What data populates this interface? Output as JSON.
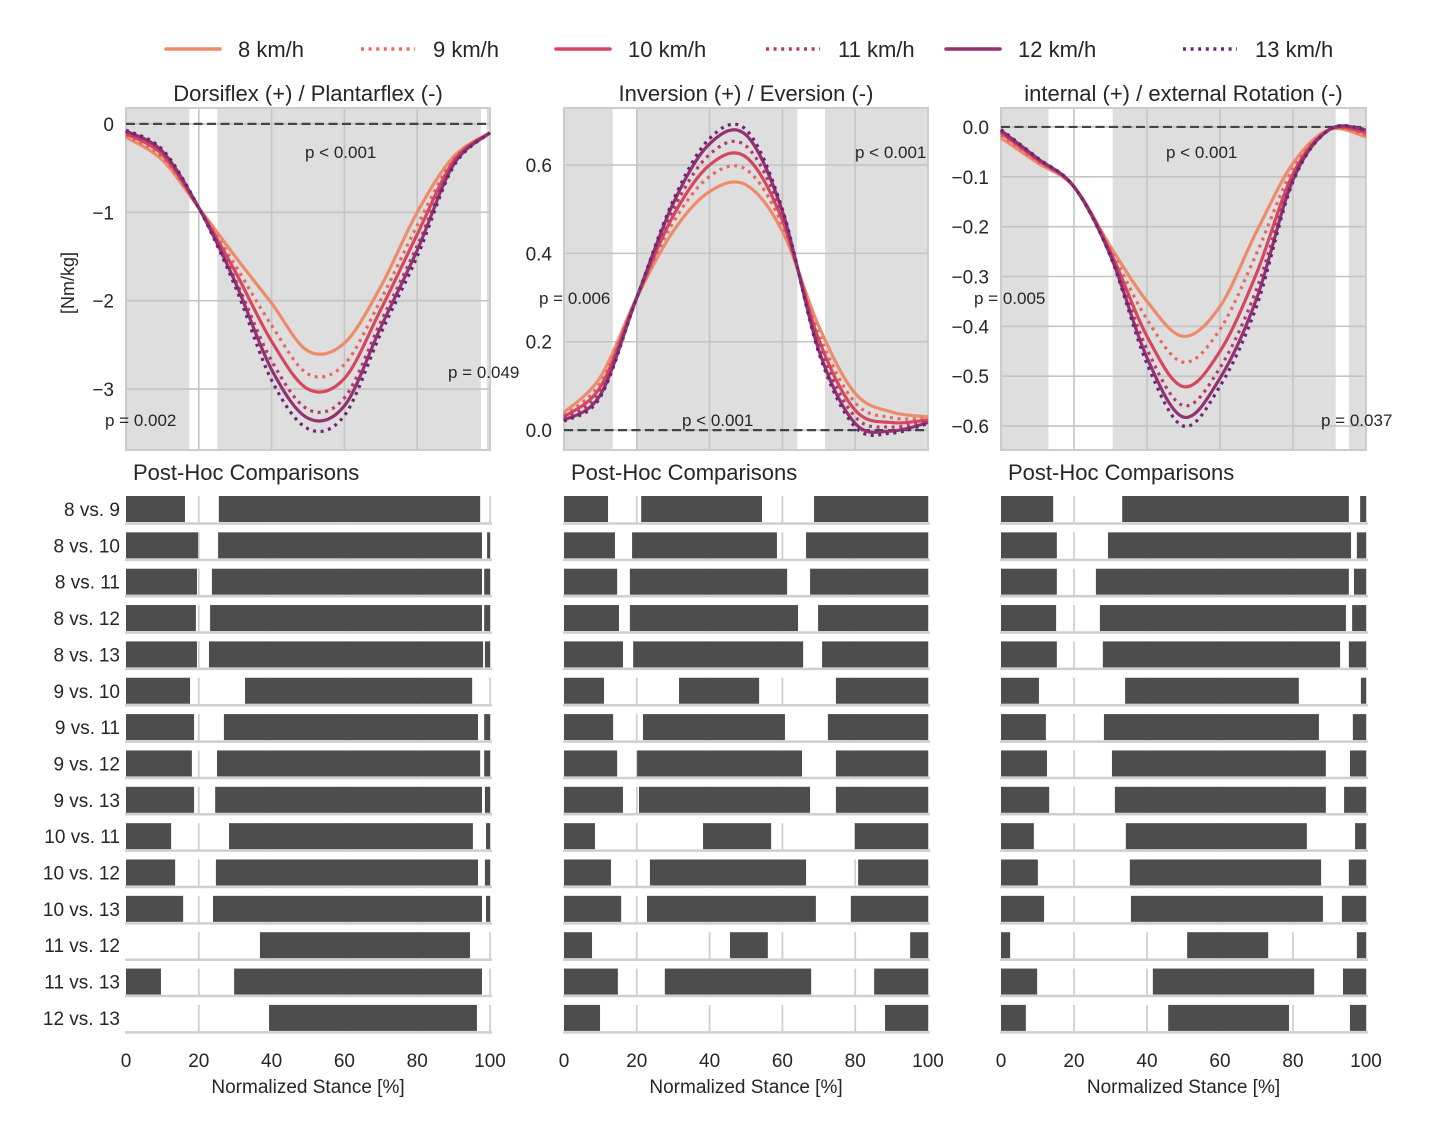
{
  "legend": {
    "items": [
      {
        "label": "8 km/h",
        "color": "#ee8b6a",
        "style": "solid"
      },
      {
        "label": "9 km/h",
        "color": "#e8685f",
        "style": "dotted"
      },
      {
        "label": "10 km/h",
        "color": "#d6475f",
        "style": "solid"
      },
      {
        "label": "11 km/h",
        "color": "#b63a6a",
        "style": "dotted"
      },
      {
        "label": "12 km/h",
        "color": "#93326f",
        "style": "solid"
      },
      {
        "label": "13 km/h",
        "color": "#6e2673",
        "style": "dotted"
      }
    ]
  },
  "chart_data": [
    {
      "type": "line",
      "title": "Dorsiflex (+) / Plantarflex (-)",
      "ylabel": "[Nm/kg]",
      "xlim": [
        0,
        100
      ],
      "ylim": [
        -3.69,
        0.18
      ],
      "xticks": [
        0,
        20,
        40,
        60,
        80,
        100
      ],
      "yticks": [
        0,
        -1,
        -2,
        -3
      ],
      "ytick_labels": [
        "0",
        "−1",
        "−2",
        "−3"
      ],
      "grid": true,
      "reference_line": 0,
      "significant_regions": [
        [
          0,
          17.4
        ],
        [
          25.1,
          97.5
        ],
        [
          99.1,
          100
        ]
      ],
      "annotations": [
        "p < 0.001",
        "p = 0.002",
        "p = 0.049"
      ],
      "x": [
        0,
        10,
        20,
        30,
        40,
        50,
        60,
        70,
        80,
        90,
        100
      ],
      "series": [
        {
          "name": "8 km/h",
          "values": [
            -0.15,
            -0.41,
            -0.95,
            -1.5,
            -2.03,
            -2.57,
            -2.48,
            -1.84,
            -1.0,
            -0.37,
            -0.1
          ]
        },
        {
          "name": "9 km/h",
          "values": [
            -0.13,
            -0.38,
            -0.95,
            -1.6,
            -2.28,
            -2.83,
            -2.72,
            -1.99,
            -1.15,
            -0.4,
            -0.1
          ]
        },
        {
          "name": "10 km/h",
          "values": [
            -0.11,
            -0.35,
            -0.95,
            -1.67,
            -2.46,
            -3.0,
            -2.88,
            -2.1,
            -1.25,
            -0.42,
            -0.1
          ]
        },
        {
          "name": "11 km/h",
          "values": [
            -0.09,
            -0.32,
            -0.95,
            -1.76,
            -2.68,
            -3.23,
            -3.1,
            -2.24,
            -1.38,
            -0.45,
            -0.1
          ]
        },
        {
          "name": "12 km/h",
          "values": [
            -0.08,
            -0.31,
            -0.95,
            -1.79,
            -2.78,
            -3.33,
            -3.19,
            -2.3,
            -1.43,
            -0.46,
            -0.1
          ]
        },
        {
          "name": "13 km/h",
          "values": [
            -0.07,
            -0.29,
            -0.95,
            -1.84,
            -2.9,
            -3.45,
            -3.3,
            -2.37,
            -1.5,
            -0.48,
            -0.1
          ]
        }
      ]
    },
    {
      "type": "line",
      "title": "Inversion (+) / Eversion (-)",
      "xlim": [
        0,
        100
      ],
      "ylim": [
        -0.045,
        0.729
      ],
      "xticks": [
        0,
        20,
        40,
        60,
        80,
        100
      ],
      "yticks": [
        0,
        0.2,
        0.4,
        0.6
      ],
      "ytick_labels": [
        "0.0",
        "0.2",
        "0.4",
        "0.6"
      ],
      "grid": true,
      "reference_line": 0,
      "significant_regions": [
        [
          0,
          13.4
        ],
        [
          20.2,
          64.1
        ],
        [
          71.7,
          100
        ]
      ],
      "annotations": [
        "p = 0.006",
        "p < 0.001",
        "p < 0.001"
      ],
      "x": [
        0,
        10,
        20,
        30,
        40,
        50,
        60,
        70,
        80,
        90,
        100
      ],
      "series": [
        {
          "name": "8 km/h",
          "values": [
            0.04,
            0.12,
            0.3,
            0.45,
            0.54,
            0.555,
            0.45,
            0.235,
            0.083,
            0.041,
            0.03
          ]
        },
        {
          "name": "9 km/h",
          "values": [
            0.034,
            0.107,
            0.3,
            0.47,
            0.574,
            0.59,
            0.464,
            0.218,
            0.062,
            0.028,
            0.026
          ]
        },
        {
          "name": "10 km/h",
          "values": [
            0.03,
            0.098,
            0.3,
            0.485,
            0.6,
            0.618,
            0.475,
            0.205,
            0.045,
            0.017,
            0.023
          ]
        },
        {
          "name": "11 km/h",
          "values": [
            0.026,
            0.089,
            0.3,
            0.499,
            0.624,
            0.643,
            0.485,
            0.193,
            0.03,
            0.007,
            0.02
          ]
        },
        {
          "name": "12 km/h",
          "values": [
            0.022,
            0.08,
            0.3,
            0.513,
            0.648,
            0.668,
            0.495,
            0.181,
            0.015,
            -0.002,
            0.017
          ]
        },
        {
          "name": "13 km/h",
          "values": [
            0.02,
            0.075,
            0.3,
            0.52,
            0.66,
            0.68,
            0.5,
            0.175,
            0.007,
            -0.007,
            0.015
          ]
        }
      ]
    },
    {
      "type": "line",
      "title": "internal (+) / external Rotation (-)",
      "xlim": [
        0,
        100
      ],
      "ylim": [
        -0.648,
        0.038
      ],
      "xticks": [
        0,
        20,
        40,
        60,
        80,
        100
      ],
      "yticks": [
        0,
        -0.1,
        -0.2,
        -0.3,
        -0.4,
        -0.5,
        -0.6
      ],
      "ytick_labels": [
        "0.0",
        "−0.1",
        "−0.2",
        "−0.3",
        "−0.4",
        "−0.5",
        "−0.6"
      ],
      "grid": true,
      "reference_line": 0,
      "significant_regions": [
        [
          0,
          13.0
        ],
        [
          30.6,
          91.7
        ],
        [
          95.3,
          100
        ]
      ],
      "annotations": [
        "p < 0.001",
        "p = 0.005",
        "p = 0.037"
      ],
      "x": [
        0,
        10,
        20,
        30,
        40,
        50,
        60,
        70,
        80,
        90,
        100
      ],
      "series": [
        {
          "name": "8 km/h",
          "values": [
            -0.022,
            -0.072,
            -0.12,
            -0.24,
            -0.35,
            -0.42,
            -0.36,
            -0.21,
            -0.073,
            -0.005,
            -0.02
          ]
        },
        {
          "name": "9 km/h",
          "values": [
            -0.017,
            -0.069,
            -0.12,
            -0.246,
            -0.386,
            -0.472,
            -0.406,
            -0.254,
            -0.084,
            -0.005,
            -0.016
          ]
        },
        {
          "name": "10 km/h",
          "values": [
            -0.012,
            -0.066,
            -0.12,
            -0.251,
            -0.42,
            -0.521,
            -0.45,
            -0.294,
            -0.094,
            -0.005,
            -0.012
          ]
        },
        {
          "name": "11 km/h",
          "values": [
            -0.009,
            -0.064,
            -0.12,
            -0.255,
            -0.446,
            -0.559,
            -0.483,
            -0.326,
            -0.101,
            -0.005,
            -0.008
          ]
        },
        {
          "name": "12 km/h",
          "values": [
            -0.007,
            -0.063,
            -0.12,
            -0.258,
            -0.463,
            -0.582,
            -0.504,
            -0.345,
            -0.106,
            -0.005,
            -0.006
          ]
        },
        {
          "name": "13 km/h",
          "values": [
            -0.005,
            -0.062,
            -0.12,
            -0.26,
            -0.475,
            -0.6,
            -0.52,
            -0.36,
            -0.11,
            -0.005,
            -0.005
          ]
        }
      ]
    },
    {
      "type": "broken_bar",
      "title": "Post-Hoc Comparisons",
      "categories": [
        "8 vs. 9",
        "8 vs. 10",
        "8 vs. 11",
        "8 vs. 12",
        "8 vs. 13",
        "9 vs. 10",
        "9 vs. 11",
        "9 vs. 12",
        "9 vs. 13",
        "10 vs. 11",
        "10 vs. 12",
        "10 vs. 13",
        "11 vs. 12",
        "11 vs. 13",
        "12 vs. 13"
      ],
      "xlim": [
        0,
        100
      ],
      "xticks": [
        0,
        20,
        40,
        60,
        80,
        100
      ],
      "xtick_labels": [
        "0",
        "20",
        "40",
        "60",
        "80",
        "100"
      ],
      "xlabel": "Normalized Stance [%]",
      "intervals": [
        [
          [
            0,
            16.2
          ],
          [
            25.5,
            97.3
          ]
        ],
        [
          [
            0,
            19.8
          ],
          [
            25.3,
            97.8
          ],
          [
            99.2,
            100
          ]
        ],
        [
          [
            0,
            19.5
          ],
          [
            23.6,
            97.8
          ],
          [
            98.4,
            100
          ]
        ],
        [
          [
            0,
            19.2
          ],
          [
            23.1,
            97.8
          ],
          [
            98.4,
            100
          ]
        ],
        [
          [
            0,
            19.5
          ],
          [
            22.8,
            98.1
          ],
          [
            98.6,
            100
          ]
        ],
        [
          [
            0,
            17.6
          ],
          [
            32.7,
            95.1
          ]
        ],
        [
          [
            0,
            18.7
          ],
          [
            26.9,
            96.7
          ],
          [
            98.4,
            100
          ]
        ],
        [
          [
            0,
            18.1
          ],
          [
            25.0,
            97.3
          ],
          [
            98.4,
            100
          ]
        ],
        [
          [
            0,
            18.7
          ],
          [
            24.5,
            97.8
          ],
          [
            98.6,
            100
          ]
        ],
        [
          [
            0,
            12.4
          ],
          [
            28.3,
            95.3
          ],
          [
            98.9,
            100
          ]
        ],
        [
          [
            0,
            13.5
          ],
          [
            24.7,
            96.7
          ],
          [
            98.6,
            100
          ]
        ],
        [
          [
            0,
            15.7
          ],
          [
            23.9,
            97.8
          ],
          [
            98.9,
            100
          ]
        ],
        [
          [
            36.8,
            94.5
          ]
        ],
        [
          [
            0,
            9.6
          ],
          [
            29.7,
            97.8
          ]
        ],
        [
          [
            39.3,
            96.4
          ]
        ]
      ]
    },
    {
      "type": "broken_bar",
      "title": "Post-Hoc Comparisons",
      "xlim": [
        0,
        100
      ],
      "xticks": [
        0,
        20,
        40,
        60,
        80,
        100
      ],
      "xtick_labels": [
        "0",
        "20",
        "40",
        "60",
        "80",
        "100"
      ],
      "xlabel": "Normalized Stance [%]",
      "intervals": [
        [
          [
            0,
            12.1
          ],
          [
            21.2,
            54.4
          ],
          [
            68.7,
            100
          ]
        ],
        [
          [
            0,
            14.0
          ],
          [
            18.7,
            58.5
          ],
          [
            66.5,
            100
          ]
        ],
        [
          [
            0,
            14.6
          ],
          [
            18.1,
            61.3
          ],
          [
            67.6,
            100
          ]
        ],
        [
          [
            0,
            15.1
          ],
          [
            18.1,
            64.3
          ],
          [
            69.8,
            100
          ]
        ],
        [
          [
            0,
            16.2
          ],
          [
            19.0,
            65.7
          ],
          [
            70.9,
            100
          ]
        ],
        [
          [
            0,
            11.0
          ],
          [
            31.6,
            53.6
          ],
          [
            74.7,
            100
          ]
        ],
        [
          [
            0,
            13.5
          ],
          [
            21.7,
            60.7
          ],
          [
            72.5,
            100
          ]
        ],
        [
          [
            0,
            14.6
          ],
          [
            20.1,
            65.4
          ],
          [
            74.7,
            100
          ]
        ],
        [
          [
            0,
            16.2
          ],
          [
            20.6,
            67.6
          ],
          [
            74.7,
            100
          ]
        ],
        [
          [
            0,
            8.5
          ],
          [
            38.2,
            56.9
          ],
          [
            79.9,
            100
          ]
        ],
        [
          [
            0,
            12.9
          ],
          [
            23.6,
            66.5
          ],
          [
            80.8,
            100
          ]
        ],
        [
          [
            0,
            15.7
          ],
          [
            22.8,
            69.2
          ],
          [
            78.8,
            100
          ]
        ],
        [
          [
            0,
            7.7
          ],
          [
            45.6,
            56.0
          ],
          [
            95.1,
            100
          ]
        ],
        [
          [
            0,
            14.8
          ],
          [
            27.7,
            67.9
          ],
          [
            85.2,
            100
          ]
        ],
        [
          [
            0,
            9.9
          ],
          [
            88.2,
            100
          ]
        ]
      ]
    },
    {
      "type": "broken_bar",
      "title": "Post-Hoc Comparisons",
      "xlim": [
        0,
        100
      ],
      "xticks": [
        0,
        20,
        40,
        60,
        80,
        100
      ],
      "xtick_labels": [
        "0",
        "20",
        "40",
        "60",
        "80",
        "100"
      ],
      "xlabel": "Normalized Stance [%]",
      "intervals": [
        [
          [
            0,
            14.3
          ],
          [
            33.2,
            95.3
          ],
          [
            98.4,
            100
          ]
        ],
        [
          [
            0,
            15.3
          ],
          [
            29.3,
            95.9
          ],
          [
            97.5,
            100
          ]
        ],
        [
          [
            0,
            15.3
          ],
          [
            26.0,
            95.3
          ],
          [
            96.7,
            100
          ]
        ],
        [
          [
            0,
            15.1
          ],
          [
            27.1,
            94.5
          ],
          [
            96.2,
            100
          ]
        ],
        [
          [
            0,
            15.3
          ],
          [
            27.9,
            92.9
          ],
          [
            95.3,
            100
          ]
        ],
        [
          [
            0,
            10.4
          ],
          [
            34.0,
            81.6
          ],
          [
            98.6,
            100
          ]
        ],
        [
          [
            0,
            12.3
          ],
          [
            28.2,
            87.1
          ],
          [
            96.4,
            100
          ]
        ],
        [
          [
            0,
            12.6
          ],
          [
            30.4,
            89.0
          ],
          [
            95.6,
            100
          ]
        ],
        [
          [
            0,
            13.2
          ],
          [
            31.2,
            89.0
          ],
          [
            94.0,
            100
          ]
        ],
        [
          [
            0,
            9.0
          ],
          [
            34.2,
            83.8
          ],
          [
            97.0,
            100
          ]
        ],
        [
          [
            0,
            10.1
          ],
          [
            35.3,
            87.7
          ],
          [
            95.3,
            100
          ]
        ],
        [
          [
            0,
            11.8
          ],
          [
            35.6,
            88.2
          ],
          [
            93.4,
            100
          ]
        ],
        [
          [
            0,
            2.5
          ],
          [
            51.0,
            73.2
          ],
          [
            97.5,
            100
          ]
        ],
        [
          [
            0,
            9.9
          ],
          [
            41.6,
            85.8
          ],
          [
            93.7,
            100
          ]
        ],
        [
          [
            0,
            6.8
          ],
          [
            45.8,
            78.9
          ],
          [
            95.6,
            100
          ]
        ]
      ]
    }
  ]
}
